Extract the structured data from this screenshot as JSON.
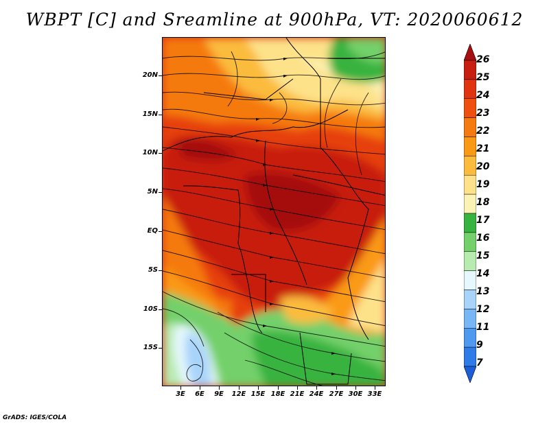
{
  "title": "WBPT [C] and Sreamline at 900hPa, VT: 2020060612",
  "credit": "GrADS: IGES/COLA",
  "map": {
    "lat_labels": [
      "20N",
      "15N",
      "10N",
      "5N",
      "EQ",
      "5S",
      "10S",
      "15S"
    ],
    "lon_labels": [
      "3E",
      "6E",
      "9E",
      "12E",
      "15E",
      "18E",
      "21E",
      "24E",
      "27E",
      "30E",
      "33E"
    ]
  },
  "colorbar": {
    "labels": [
      "26",
      "25",
      "24",
      "23",
      "22",
      "21",
      "20",
      "19",
      "18",
      "17",
      "16",
      "15",
      "14",
      "13",
      "12",
      "11",
      "9",
      "7"
    ],
    "colors": [
      "#a50f0f",
      "#c81e0f",
      "#e0330f",
      "#f0500f",
      "#f57a0f",
      "#fa9a14",
      "#fbbb3c",
      "#fde28a",
      "#fbf2b5",
      "#37b33f",
      "#73d06a",
      "#b8ebb0",
      "#e6f8fd",
      "#a8d4fa",
      "#78b7f5",
      "#4f99f0",
      "#2f7be8",
      "#1b5fd8"
    ]
  },
  "colors": {
    "hot": "#c81e0f",
    "warm": "#f57a0f",
    "cool_green": "#73d06a",
    "cold_blue": "#a8d4fa"
  }
}
